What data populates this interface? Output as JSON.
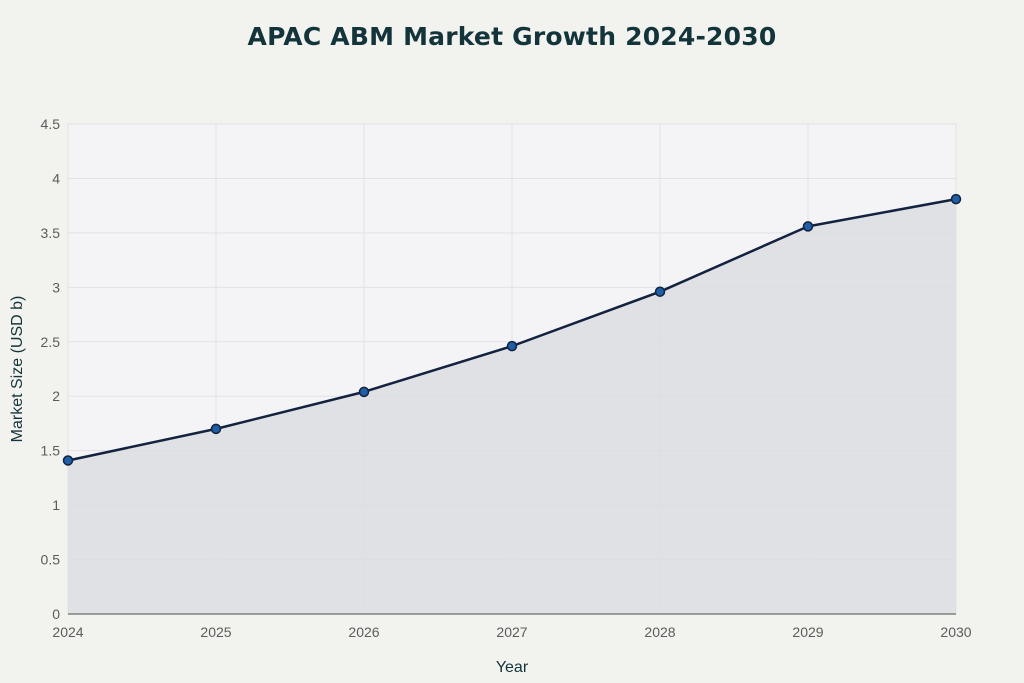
{
  "chart_data": {
    "type": "area",
    "title": "APAC ABM Market Growth 2024-2030",
    "xlabel": "Year",
    "ylabel": "Market Size (USD b)",
    "x": [
      "2024",
      "2025",
      "2026",
      "2027",
      "2028",
      "2029",
      "2030"
    ],
    "series": [
      {
        "values": [
          1.41,
          1.7,
          2.04,
          2.46,
          2.96,
          3.56,
          3.81
        ]
      }
    ],
    "ylim": [
      0,
      4.5
    ],
    "yticks": [
      "0",
      "0.5",
      "1",
      "1.5",
      "2",
      "2.5",
      "3",
      "3.5",
      "4",
      "4.5"
    ],
    "yticks_values": [
      0,
      0.5,
      1,
      1.5,
      2,
      2.5,
      3,
      3.5,
      4,
      4.5
    ],
    "grid": true,
    "colors": {
      "line": "#13233f",
      "marker_fill": "#1f5fa8",
      "marker_stroke": "#13233f",
      "area_fill": "#dcdde2",
      "plot_bg": "#f4f4f6",
      "grid": "#e2e2e6"
    }
  }
}
